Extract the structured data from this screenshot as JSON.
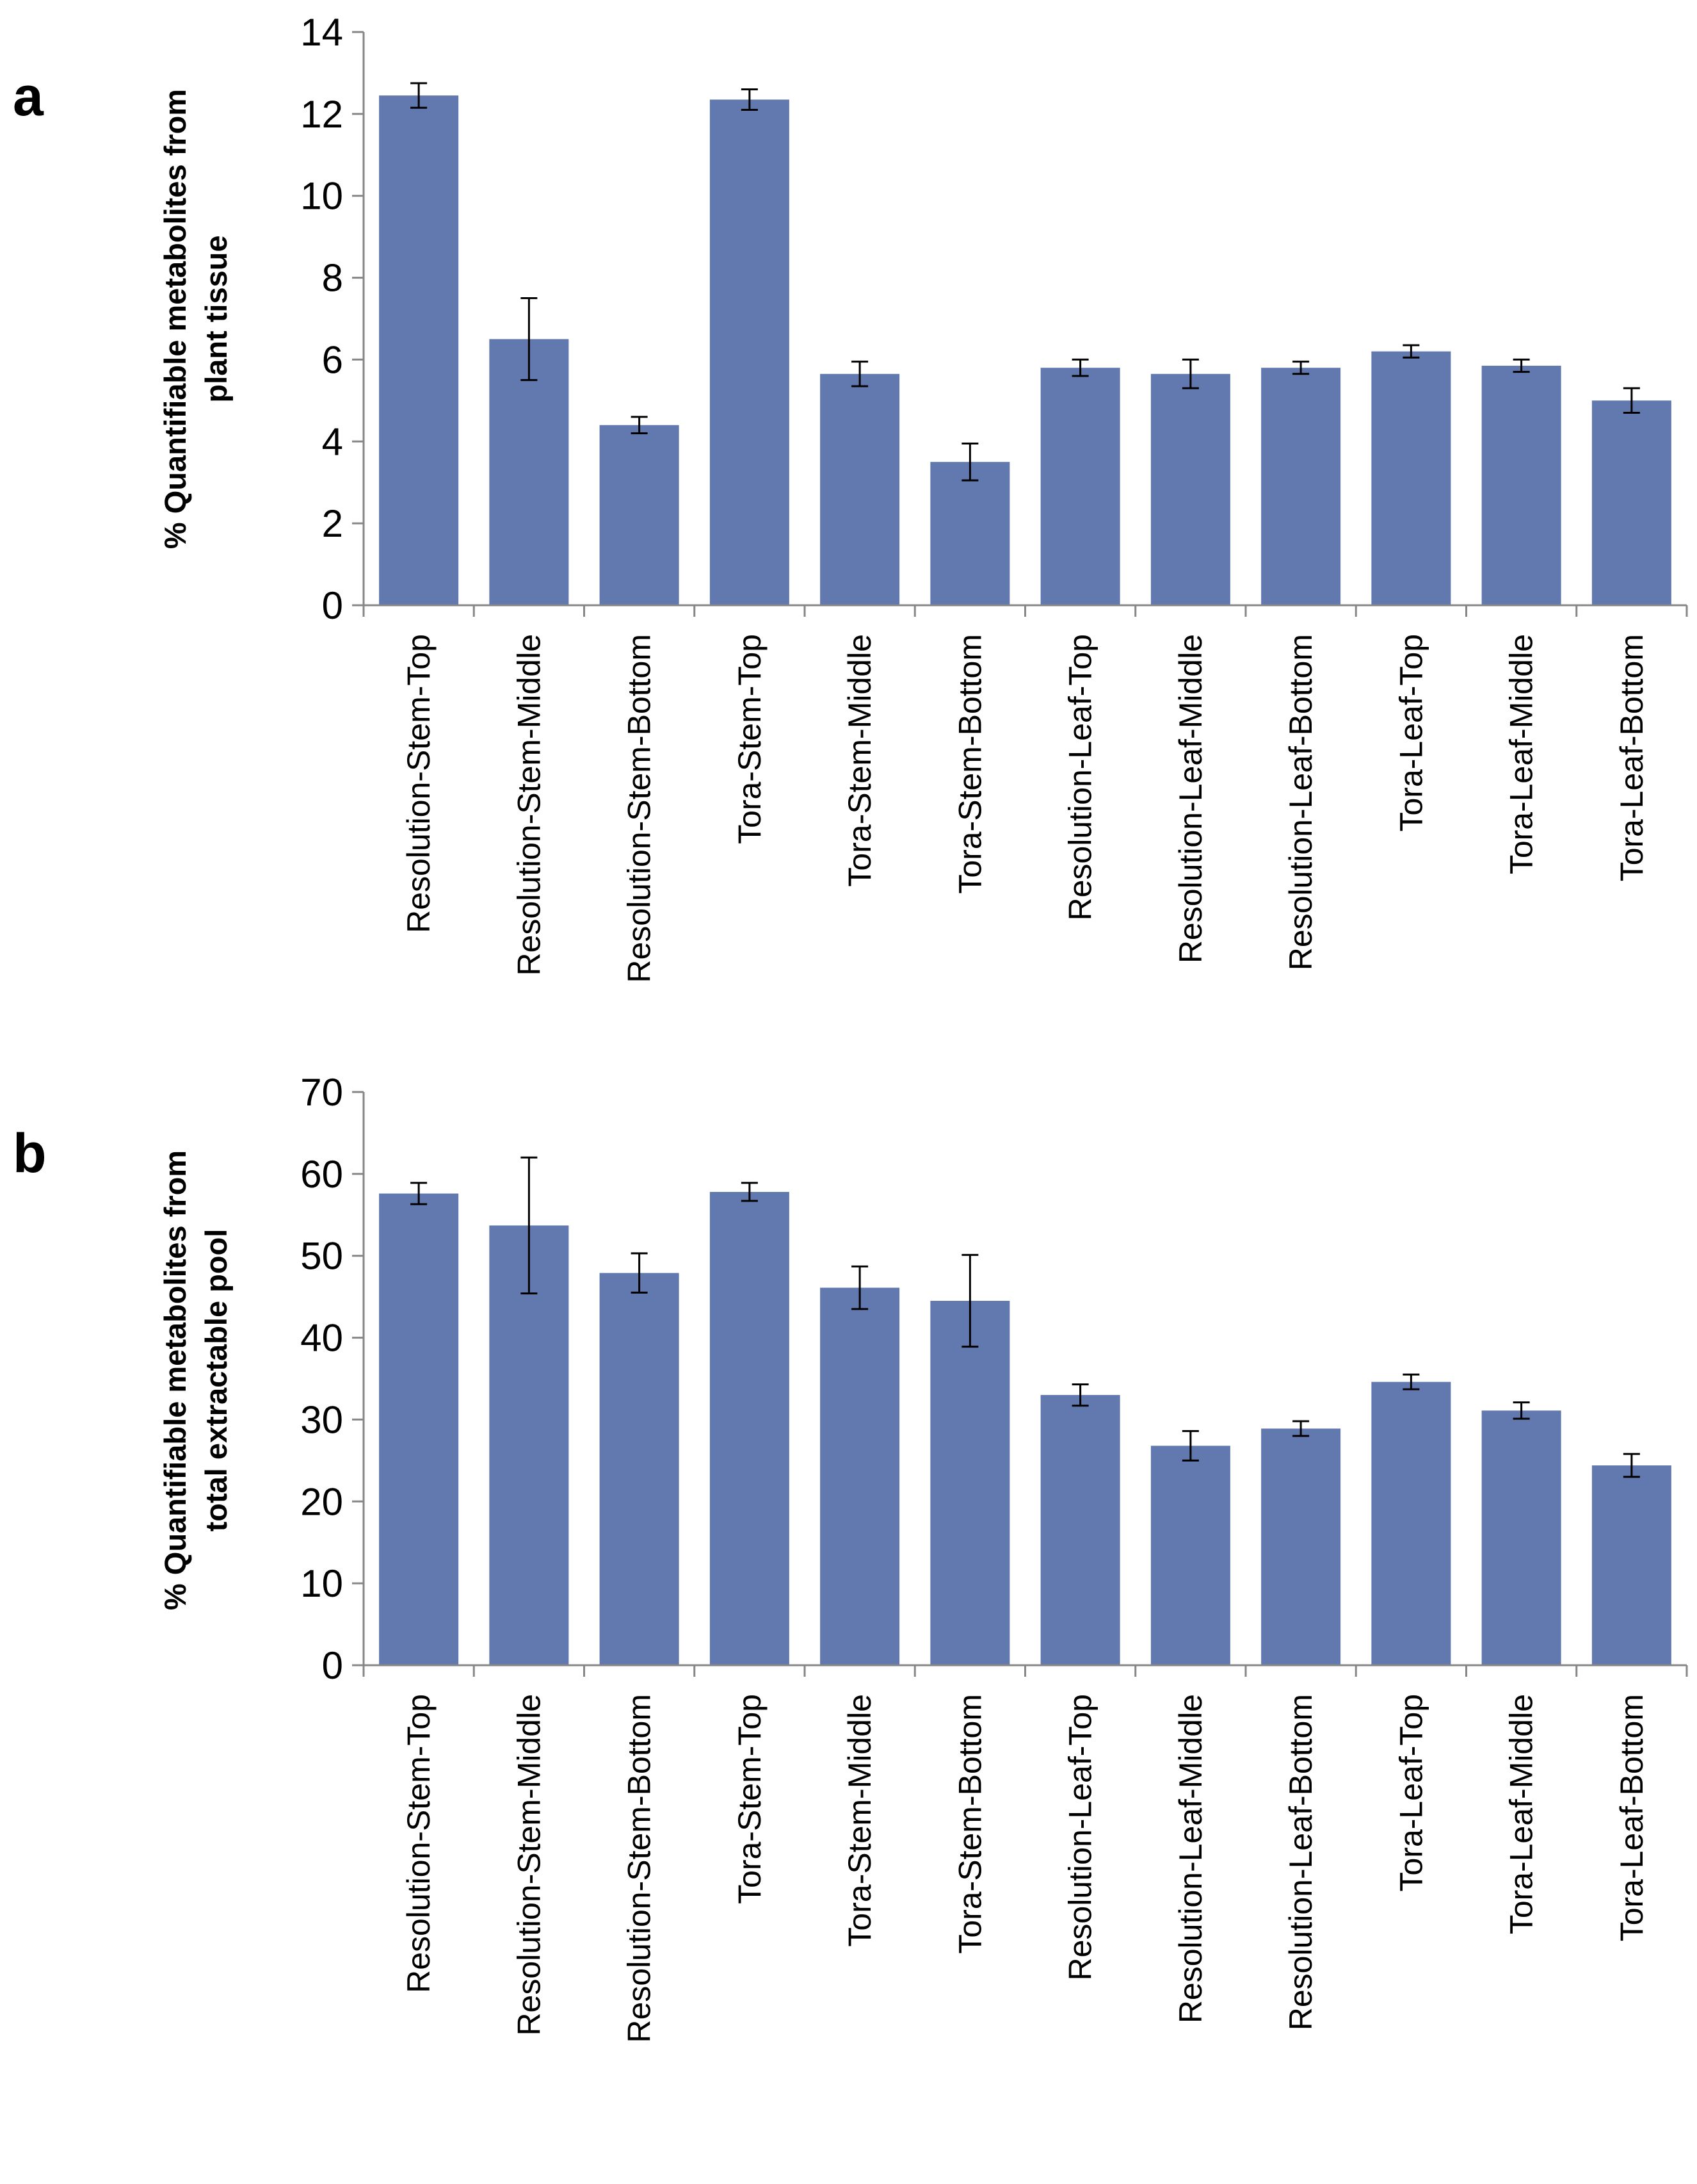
{
  "chart_data": [
    {
      "panel": "a",
      "type": "bar",
      "categories": [
        "Resolution-Stem-Top",
        "Resolution-Stem-Middle",
        "Resolution-Stem-Bottom",
        "Tora-Stem-Top",
        "Tora-Stem-Middle",
        "Tora-Stem-Bottom",
        "Resolution-Leaf-Top",
        "Resolution-Leaf-Middle",
        "Resolution-Leaf-Bottom",
        "Tora-Leaf-Top",
        "Tora-Leaf-Middle",
        "Tora-Leaf-Bottom"
      ],
      "values": [
        12.45,
        6.5,
        4.4,
        12.35,
        5.65,
        3.5,
        5.8,
        5.65,
        5.8,
        6.2,
        5.85,
        5.0
      ],
      "errors": [
        0.3,
        1.0,
        0.2,
        0.25,
        0.3,
        0.45,
        0.2,
        0.35,
        0.15,
        0.15,
        0.15,
        0.3
      ],
      "ylabel_lines": [
        "% Quantifiable metabolites from",
        "plant tissue"
      ],
      "yticks": [
        0,
        2,
        4,
        6,
        8,
        10,
        12,
        14
      ],
      "ylim": [
        0,
        14
      ],
      "color": "#6279b0"
    },
    {
      "panel": "b",
      "type": "bar",
      "categories": [
        "Resolution-Stem-Top",
        "Resolution-Stem-Middle",
        "Resolution-Stem-Bottom",
        "Tora-Stem-Top",
        "Tora-Stem-Middle",
        "Tora-Stem-Bottom",
        "Resolution-Leaf-Top",
        "Resolution-Leaf-Middle",
        "Resolution-Leaf-Bottom",
        "Tora-Leaf-Top",
        "Tora-Leaf-Middle",
        "Tora-Leaf-Bottom"
      ],
      "values": [
        57.6,
        53.7,
        47.9,
        57.8,
        46.1,
        44.5,
        33.0,
        26.8,
        28.9,
        34.6,
        31.1,
        24.4
      ],
      "errors": [
        1.3,
        8.3,
        2.4,
        1.1,
        2.6,
        5.6,
        1.3,
        1.8,
        0.9,
        0.9,
        1.0,
        1.4
      ],
      "ylabel_lines": [
        "% Quantifiable metabolites from",
        "total extractable  pool"
      ],
      "yticks": [
        0,
        10,
        20,
        30,
        40,
        50,
        60,
        70
      ],
      "ylim": [
        0,
        70
      ],
      "color": "#6279b0"
    }
  ]
}
